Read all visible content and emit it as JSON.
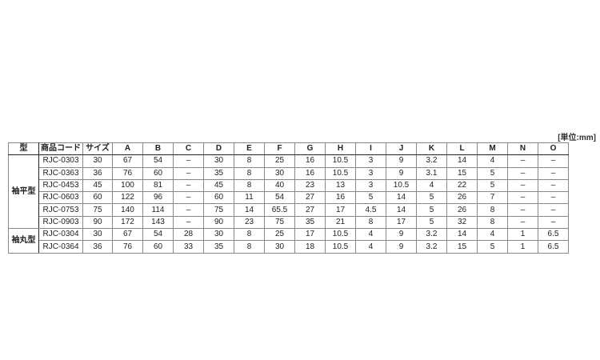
{
  "unit_label": "[単位:mm]",
  "table": {
    "headers": [
      "型",
      "商品コード",
      "サイズ",
      "A",
      "B",
      "C",
      "D",
      "E",
      "F",
      "G",
      "H",
      "I",
      "J",
      "K",
      "L",
      "M",
      "N",
      "O"
    ],
    "groups": [
      {
        "type": "袖平型",
        "rows": [
          [
            "RJC-0303",
            "30",
            "67",
            "54",
            "–",
            "30",
            "8",
            "25",
            "16",
            "10.5",
            "3",
            "9",
            "3.2",
            "14",
            "4",
            "–",
            "–"
          ],
          [
            "RJC-0363",
            "36",
            "76",
            "60",
            "–",
            "35",
            "8",
            "30",
            "16",
            "10.5",
            "3",
            "9",
            "3.1",
            "15",
            "5",
            "–",
            "–"
          ],
          [
            "RJC-0453",
            "45",
            "100",
            "81",
            "–",
            "45",
            "8",
            "40",
            "23",
            "13",
            "3",
            "10.5",
            "4",
            "22",
            "5",
            "–",
            "–"
          ],
          [
            "RJC-0603",
            "60",
            "122",
            "96",
            "–",
            "60",
            "11",
            "54",
            "27",
            "16",
            "5",
            "14",
            "5",
            "26",
            "7",
            "–",
            "–"
          ],
          [
            "RJC-0753",
            "75",
            "140",
            "114",
            "–",
            "75",
            "14",
            "65.5",
            "27",
            "17",
            "4.5",
            "14",
            "5",
            "26",
            "8",
            "–",
            "–"
          ],
          [
            "RJC-0903",
            "90",
            "172",
            "143",
            "–",
            "90",
            "23",
            "75",
            "35",
            "21",
            "8",
            "17",
            "5",
            "32",
            "8",
            "–",
            "–"
          ]
        ]
      },
      {
        "type": "袖丸型",
        "rows": [
          [
            "RJC-0304",
            "30",
            "67",
            "54",
            "28",
            "30",
            "8",
            "25",
            "17",
            "10.5",
            "4",
            "9",
            "3.2",
            "14",
            "4",
            "1",
            "6.5"
          ],
          [
            "RJC-0364",
            "36",
            "76",
            "60",
            "33",
            "35",
            "8",
            "30",
            "18",
            "10.5",
            "4",
            "9",
            "3.2",
            "15",
            "5",
            "1",
            "6.5"
          ]
        ]
      }
    ]
  }
}
